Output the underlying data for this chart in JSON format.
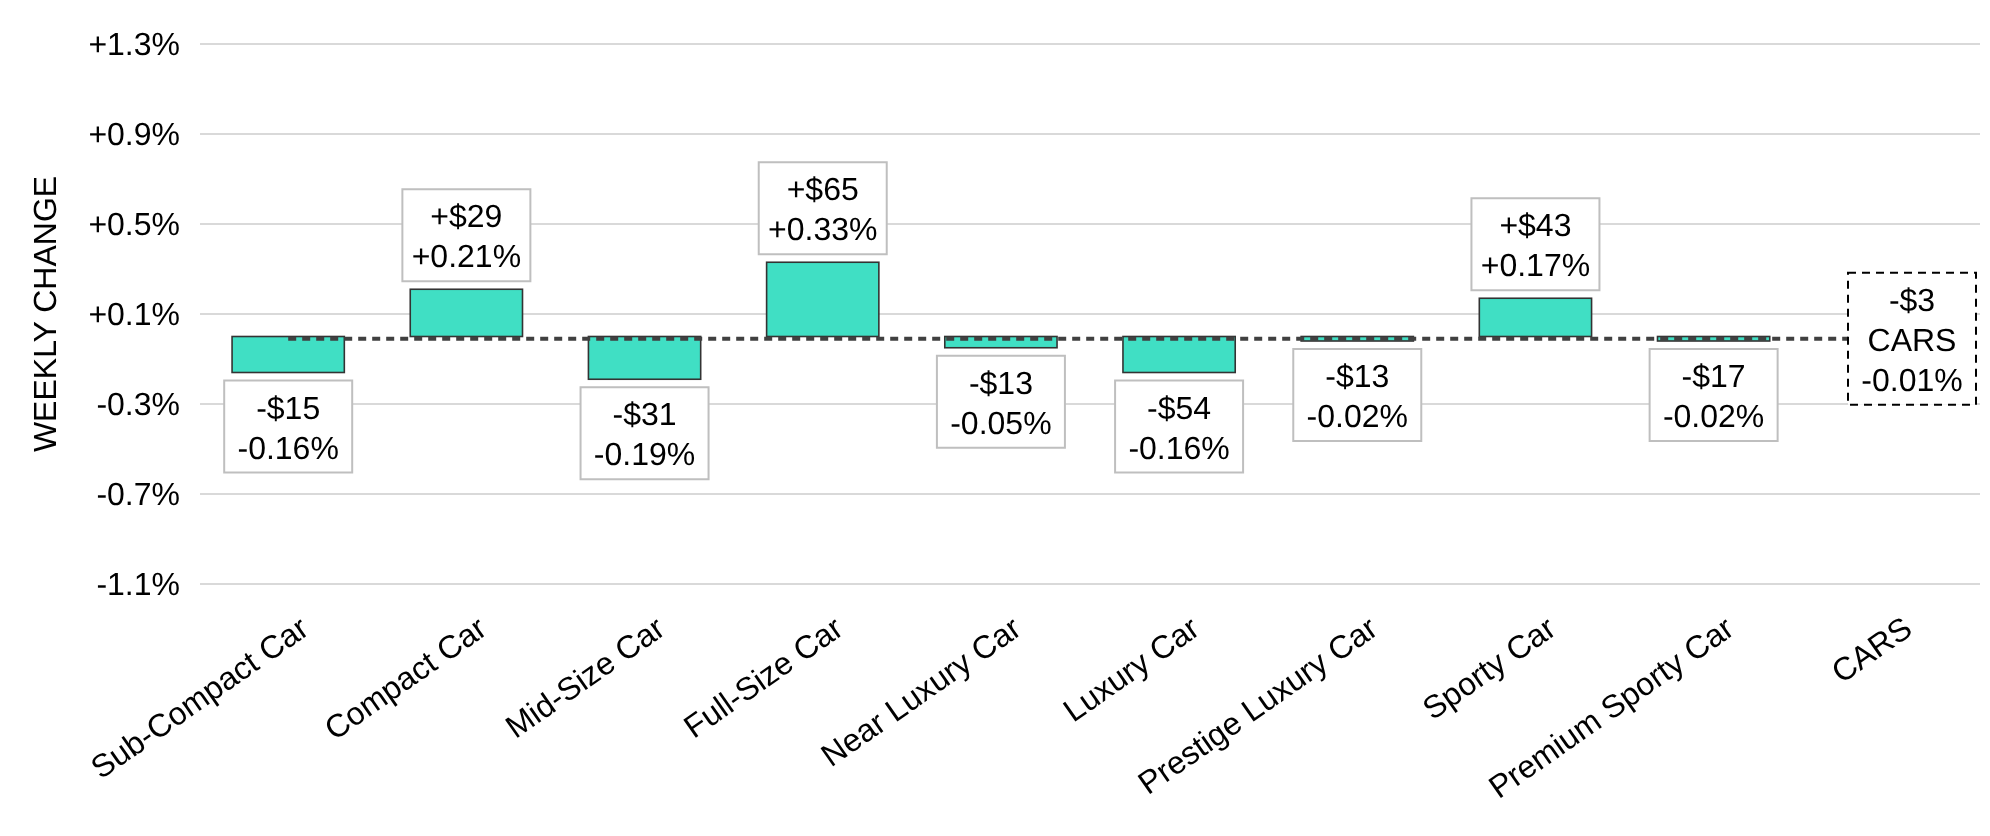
{
  "chart_data": {
    "type": "bar",
    "ylabel": "WEEKLY CHANGE",
    "categories": [
      "Sub-Compact Car",
      "Compact Car",
      "Mid-Size Car",
      "Full-Size Car",
      "Near Luxury Car",
      "Luxury Car",
      "Prestige Luxury Car",
      "Sporty Car",
      "Premium Sporty Car",
      "CARS"
    ],
    "values": [
      -0.16,
      0.21,
      -0.19,
      0.33,
      -0.05,
      -0.16,
      -0.02,
      0.17,
      -0.02,
      null
    ],
    "value_labels": [
      "-$15\n-0.16%",
      "+$29\n+0.21%",
      "-$31\n-0.19%",
      "+$65\n+0.33%",
      "-$13\n-0.05%",
      "-$54\n-0.16%",
      "-$13\n-0.02%",
      "+$43\n+0.17%",
      "-$17\n-0.02%",
      null
    ],
    "color": "#40dfc4",
    "ylim": [
      -1.1,
      1.3
    ],
    "yticks": [
      {
        "value": -1.1,
        "label": "-1.1%"
      },
      {
        "value": -0.7,
        "label": "-0.7%"
      },
      {
        "value": -0.3,
        "label": "-0.3%"
      },
      {
        "value": 0.1,
        "label": "+0.1%"
      },
      {
        "value": 0.5,
        "label": "+0.5%"
      },
      {
        "value": 0.9,
        "label": "+0.9%"
      },
      {
        "value": 1.3,
        "label": "+1.3%"
      }
    ],
    "grid": "y",
    "ref_lines": [
      {
        "axis": "y",
        "value": -0.01,
        "label": "-$3\nCARS\n-0.01%",
        "line_style": "dashed",
        "color": "#404040"
      }
    ]
  }
}
